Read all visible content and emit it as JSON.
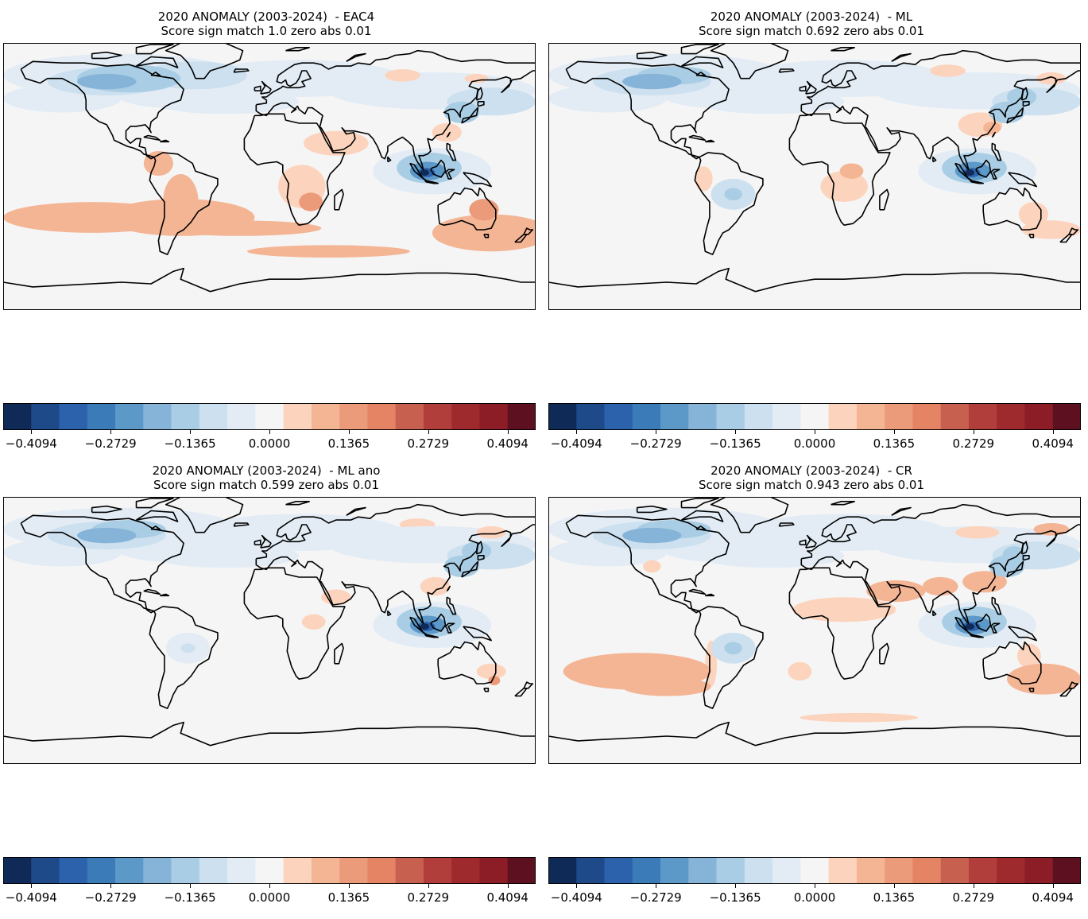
{
  "figure": {
    "colorbar_colors": [
      "#0f2a56",
      "#1e4a8a",
      "#2c62ab",
      "#3b7bb8",
      "#5c98c8",
      "#86b4d9",
      "#a9cde4",
      "#cce0ef",
      "#e3ecf5",
      "#f5f5f5",
      "#fcd4bd",
      "#f4b595",
      "#ec9b7a",
      "#e58464",
      "#c86050",
      "#b23e3c",
      "#9e2a2e",
      "#8c1c26",
      "#5c1020"
    ],
    "colorbar_ticks": [
      "−0.4094",
      "−0.2729",
      "−0.1365",
      "0.0000",
      "0.1365",
      "0.2729",
      "0.4094"
    ]
  },
  "chart_data": [
    {
      "type": "heatmap",
      "title_line1": "2020 ANOMALY (2003-2024)  - EAC4",
      "title_line2": "Score sign match 1.0 zero abs 0.01",
      "variant": "eac4",
      "colorbar_range": [
        -0.4094,
        0.4094
      ]
    },
    {
      "type": "heatmap",
      "title_line1": "2020 ANOMALY (2003-2024)  - ML",
      "title_line2": "Score sign match 0.692 zero abs 0.01",
      "variant": "ml",
      "colorbar_range": [
        -0.4094,
        0.4094
      ]
    },
    {
      "type": "heatmap",
      "title_line1": "2020 ANOMALY (2003-2024)  - ML ano",
      "title_line2": "Score sign match 0.599 zero abs 0.01",
      "variant": "mlano",
      "colorbar_range": [
        -0.4094,
        0.4094
      ]
    },
    {
      "type": "heatmap",
      "title_line1": "2020 ANOMALY (2003-2024)  - CR",
      "title_line2": "Score sign match 0.943 zero abs 0.01",
      "variant": "cr",
      "colorbar_range": [
        -0.4094,
        0.4094
      ]
    }
  ]
}
